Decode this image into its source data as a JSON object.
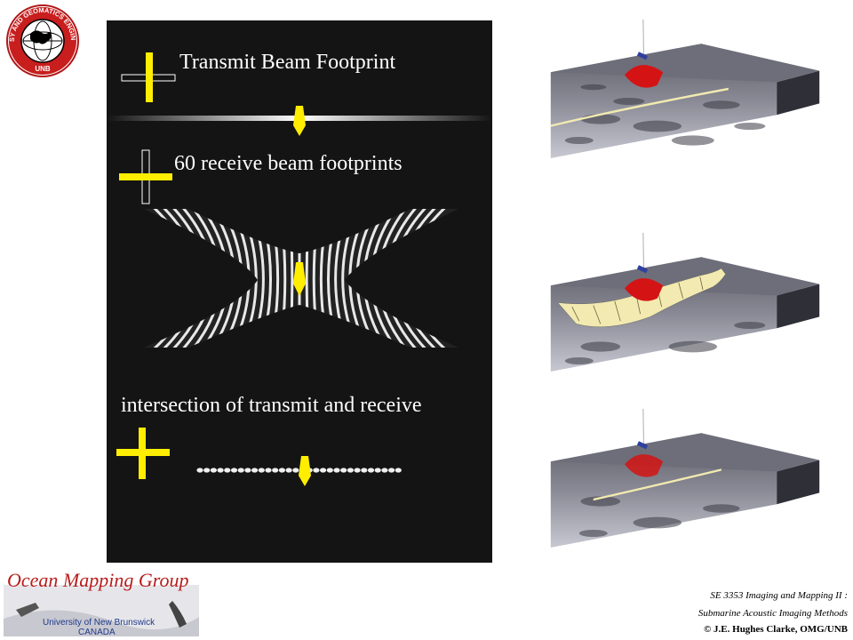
{
  "logo": {
    "ring_text": "GEODESY AND GEOMATICS ENGINEERING",
    "bottom_text": "UNB"
  },
  "panel": {
    "transmit_label": "Transmit Beam Footprint",
    "receive_label": "60 receive beam footprints",
    "intersection_label": "intersection of transmit and receive"
  },
  "colors": {
    "panel_bg": "#141414",
    "vessel_yellow": "#ffee00",
    "beam_red": "#d41414",
    "swath_cream": "#f2eab0",
    "omg_red": "#b91c1c",
    "omg_blue": "#1f3a8a"
  },
  "footer": {
    "group_name": "Ocean Mapping Group",
    "university": "University of New Brunswick",
    "country": "CANADA",
    "course_line1": "SE 3353 Imaging and Mapping II :",
    "course_line2": "Submarine Acoustic Imaging Methods",
    "copyright": "© J.E. Hughes Clarke, OMG/UNB"
  }
}
